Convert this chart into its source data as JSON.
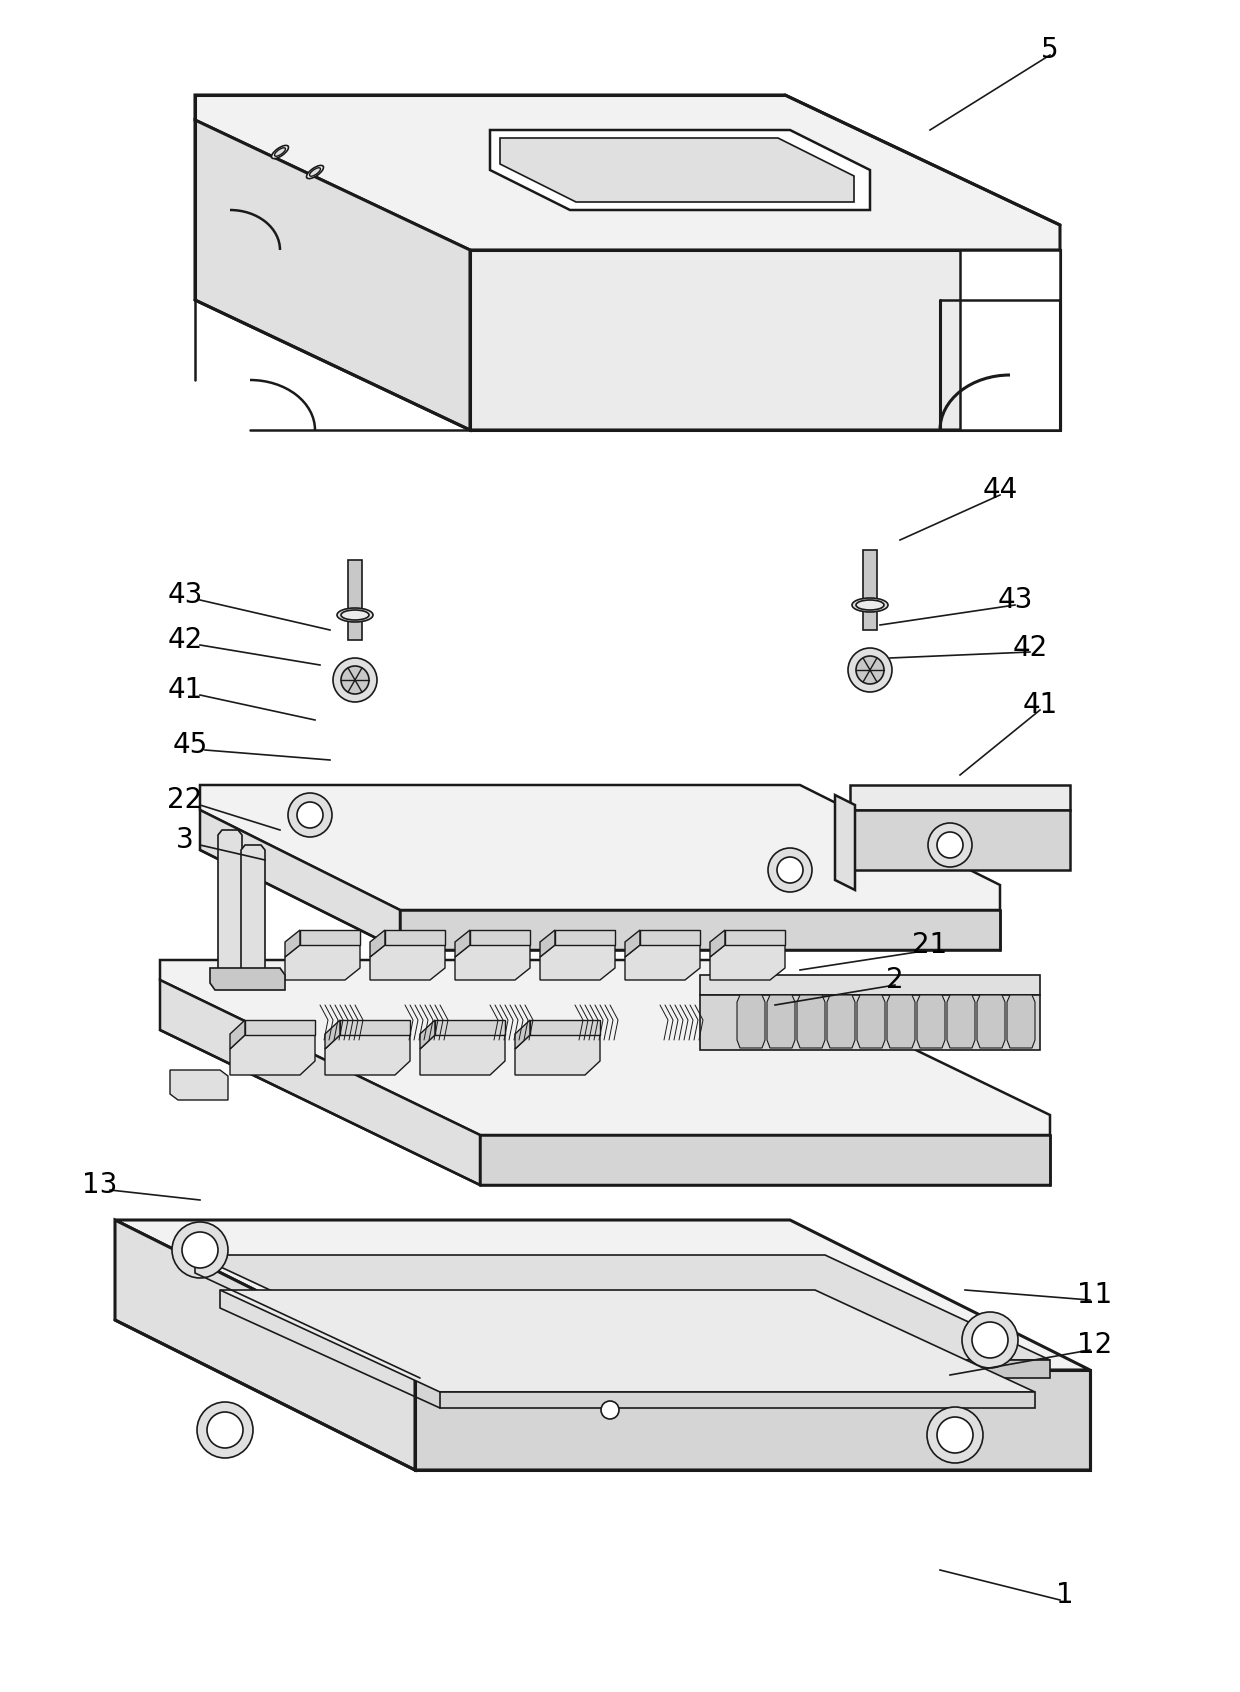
{
  "bg_color": "#ffffff",
  "lc": "#1a1a1a",
  "lw": 1.8,
  "lw_thin": 1.2,
  "lw_thick": 2.2,
  "gray_light": "#f2f2f2",
  "gray_mid": "#e0e0e0",
  "gray_dark": "#c8c8c8",
  "gray_darker": "#b0b0b0",
  "gray_face": "#ebebeb",
  "gray_side": "#d5d5d5",
  "gray_bottom": "#c0c0c0"
}
